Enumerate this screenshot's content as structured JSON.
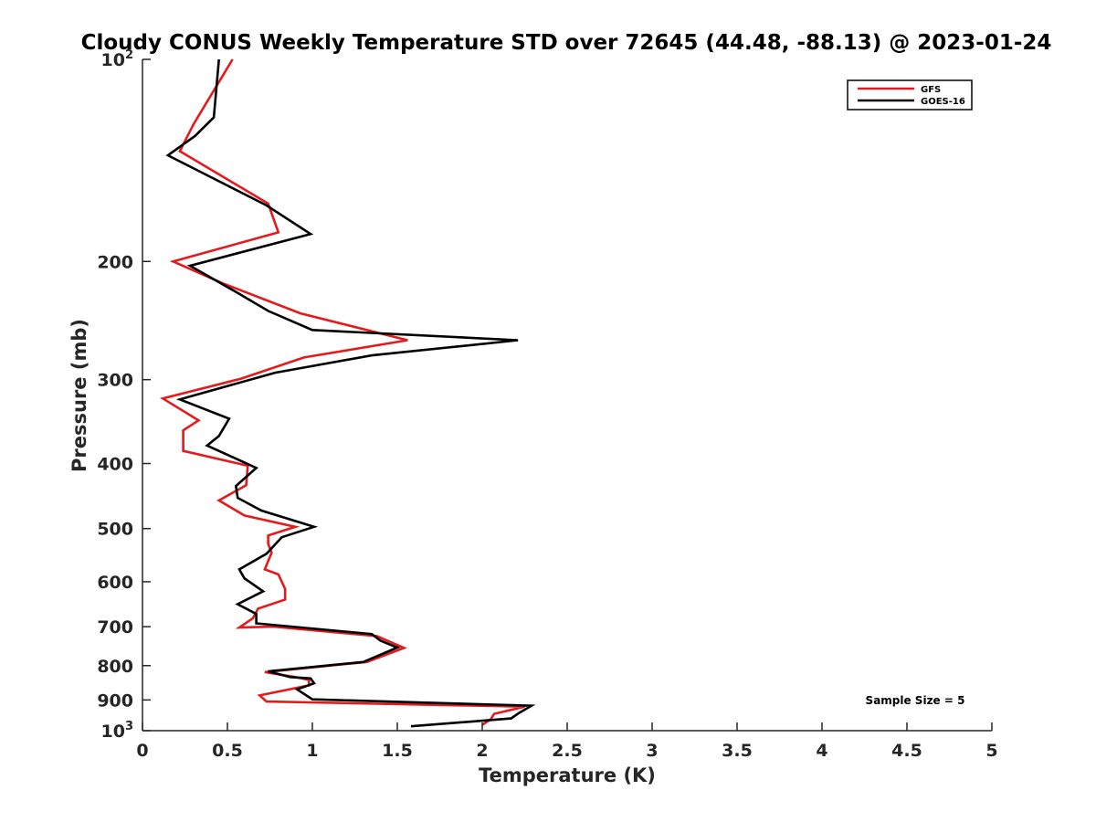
{
  "chart_data": {
    "type": "line",
    "title": "Cloudy CONUS Weekly Temperature STD over 72645 (44.48, -88.13) @ 2023-01-24",
    "xlabel": "Temperature (K)",
    "ylabel": "Pressure (mb)",
    "xlim": [
      0,
      5
    ],
    "ylim": [
      100,
      1000
    ],
    "y_scale": "log",
    "y_reversed": true,
    "x_ticks": [
      "0",
      "0.5",
      "1",
      "1.5",
      "2",
      "2.5",
      "3",
      "3.5",
      "4",
      "4.5",
      "5"
    ],
    "y_ticks": [
      {
        "value": 100,
        "base": "10",
        "exp": "2"
      },
      {
        "value": 200,
        "label": "200"
      },
      {
        "value": 300,
        "label": "300"
      },
      {
        "value": 400,
        "label": "400"
      },
      {
        "value": 500,
        "label": "500"
      },
      {
        "value": 600,
        "label": "600"
      },
      {
        "value": 700,
        "label": "700"
      },
      {
        "value": 800,
        "label": "800"
      },
      {
        "value": 900,
        "label": "900"
      },
      {
        "value": 1000,
        "base": "10",
        "exp": "3"
      }
    ],
    "grid": false,
    "legend_position": "top-right",
    "annotation": "Sample Size = 5",
    "series": [
      {
        "name": "GFS",
        "color": "#e41a1c",
        "points": [
          [
            0.53,
            100
          ],
          [
            0.3,
            125
          ],
          [
            0.22,
            137
          ],
          [
            0.74,
            164
          ],
          [
            0.8,
            181
          ],
          [
            0.18,
            200
          ],
          [
            0.48,
            216
          ],
          [
            0.93,
            239
          ],
          [
            1.56,
            262
          ],
          [
            0.95,
            278
          ],
          [
            0.58,
            299
          ],
          [
            0.12,
            320
          ],
          [
            0.33,
            345
          ],
          [
            0.24,
            357
          ],
          [
            0.24,
            383
          ],
          [
            0.62,
            403
          ],
          [
            0.61,
            431
          ],
          [
            0.45,
            454
          ],
          [
            0.6,
            478
          ],
          [
            0.9,
            497
          ],
          [
            0.74,
            512
          ],
          [
            0.74,
            527
          ],
          [
            0.76,
            543
          ],
          [
            0.72,
            575
          ],
          [
            0.8,
            585
          ],
          [
            0.84,
            615
          ],
          [
            0.84,
            638
          ],
          [
            0.68,
            658
          ],
          [
            0.65,
            680
          ],
          [
            0.57,
            702
          ],
          [
            0.77,
            700
          ],
          [
            1.38,
            723
          ],
          [
            1.54,
            753
          ],
          [
            1.32,
            790
          ],
          [
            0.72,
            818
          ],
          [
            0.9,
            832
          ],
          [
            0.98,
            840
          ],
          [
            0.98,
            856
          ],
          [
            0.69,
            886
          ],
          [
            0.73,
            905
          ],
          [
            2.25,
            921
          ],
          [
            2.07,
            944
          ],
          [
            2.05,
            962
          ],
          [
            2.0,
            980
          ]
        ]
      },
      {
        "name": "GOES-16",
        "color": "#000000",
        "points": [
          [
            0.45,
            100
          ],
          [
            0.42,
            122
          ],
          [
            0.31,
            130
          ],
          [
            0.15,
            139
          ],
          [
            0.73,
            165
          ],
          [
            0.99,
            182
          ],
          [
            0.28,
            203
          ],
          [
            0.55,
            222
          ],
          [
            0.74,
            237
          ],
          [
            1.0,
            253
          ],
          [
            2.21,
            262
          ],
          [
            1.35,
            276
          ],
          [
            0.78,
            293
          ],
          [
            0.22,
            321
          ],
          [
            0.51,
            343
          ],
          [
            0.45,
            364
          ],
          [
            0.38,
            376
          ],
          [
            0.67,
            406
          ],
          [
            0.55,
            432
          ],
          [
            0.56,
            450
          ],
          [
            0.7,
            470
          ],
          [
            1.01,
            497
          ],
          [
            0.82,
            515
          ],
          [
            0.73,
            545
          ],
          [
            0.57,
            575
          ],
          [
            0.6,
            593
          ],
          [
            0.71,
            620
          ],
          [
            0.56,
            648
          ],
          [
            0.67,
            670
          ],
          [
            0.67,
            692
          ],
          [
            1.35,
            718
          ],
          [
            1.4,
            734
          ],
          [
            1.5,
            752
          ],
          [
            1.3,
            790
          ],
          [
            0.74,
            816
          ],
          [
            0.87,
            832
          ],
          [
            0.99,
            836
          ],
          [
            1.01,
            850
          ],
          [
            0.91,
            868
          ],
          [
            1.0,
            898
          ],
          [
            2.29,
            918
          ],
          [
            2.22,
            940
          ],
          [
            2.17,
            959
          ],
          [
            1.58,
            985
          ]
        ]
      }
    ]
  }
}
